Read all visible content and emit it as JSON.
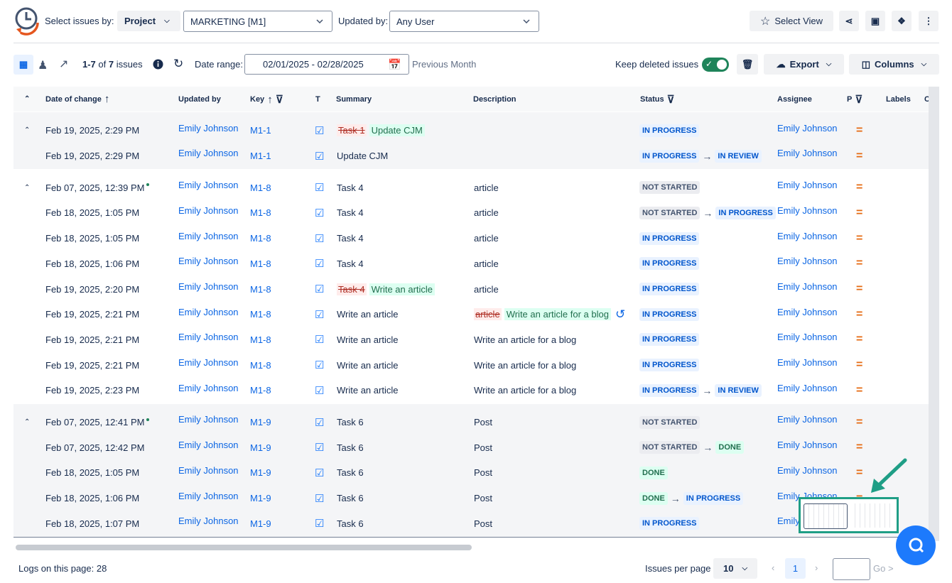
{
  "toolbar": {
    "select_by_label": "Select issues by:",
    "select_by_value": "Project",
    "project": "MARKETING [M1]",
    "updated_by_label": "Updated by:",
    "updated_by_value": "Any User",
    "select_view": "Select View"
  },
  "filters": {
    "count_range": "1-7",
    "count_of": "of",
    "count_total": "7",
    "count_unit": "issues",
    "date_range_label": "Date range:",
    "date_range": "02/01/2025 - 02/28/2025",
    "preset": "Previous Month",
    "keep_deleted": "Keep deleted issues",
    "export": "Export",
    "columns": "Columns"
  },
  "table": {
    "headers": [
      "Date of change",
      "Updated by",
      "Key",
      "T",
      "Summary",
      "Description",
      "Status",
      "Assignee",
      "P",
      "Labels",
      "C"
    ],
    "groups": [
      [
        {
          "date": "Feb 19, 2025, 2:29 PM",
          "user": "Emily Johnson",
          "key": "M1-1",
          "summary_old": "Task 1",
          "summary": "Update CJM",
          "status": "IN PROGRESS",
          "assignee": "Emily Johnson"
        },
        {
          "date": "Feb 19, 2025, 2:29 PM",
          "user": "Emily Johnson",
          "key": "M1-1",
          "summary": "Update CJM",
          "status": "IN PROGRESS",
          "status_to": "IN REVIEW",
          "assignee": "Emily Johnson"
        }
      ],
      [
        {
          "date": "Feb 07, 2025, 12:39 PM",
          "user": "Emily Johnson",
          "key": "M1-8",
          "summary": "Task 4",
          "description": "article",
          "status": "NOT STARTED",
          "assignee": "Emily Johnson"
        },
        {
          "date": "Feb 18, 2025, 1:05 PM",
          "user": "Emily Johnson",
          "key": "M1-8",
          "summary": "Task 4",
          "description": "article",
          "status": "NOT STARTED",
          "status_to": "IN PROGRESS",
          "assignee": "Emily Johnson"
        },
        {
          "date": "Feb 18, 2025, 1:05 PM",
          "user": "Emily Johnson",
          "key": "M1-8",
          "summary": "Task 4",
          "description": "article",
          "status": "IN PROGRESS",
          "assignee": "Emily Johnson"
        },
        {
          "date": "Feb 18, 2025, 1:06 PM",
          "user": "Emily Johnson",
          "key": "M1-8",
          "summary": "Task 4",
          "description": "article",
          "status": "IN PROGRESS",
          "assignee": "Emily Johnson"
        },
        {
          "date": "Feb 19, 2025, 2:20 PM",
          "user": "Emily Johnson",
          "key": "M1-8",
          "summary_old": "Task 4",
          "summary": "Write an article",
          "description": "article",
          "status": "IN PROGRESS",
          "assignee": "Emily Johnson"
        },
        {
          "date": "Feb 19, 2025, 2:21 PM",
          "user": "Emily Johnson",
          "key": "M1-8",
          "summary": "Write an article",
          "description_old": "article",
          "description": "Write an article for a blog",
          "status": "IN PROGRESS",
          "assignee": "Emily Johnson"
        },
        {
          "date": "Feb 19, 2025, 2:21 PM",
          "user": "Emily Johnson",
          "key": "M1-8",
          "summary": "Write an article",
          "description": "Write an article for a blog",
          "status": "IN PROGRESS",
          "assignee": "Emily Johnson"
        },
        {
          "date": "Feb 19, 2025, 2:21 PM",
          "user": "Emily Johnson",
          "key": "M1-8",
          "summary": "Write an article",
          "description": "Write an article for a blog",
          "status": "IN PROGRESS",
          "assignee": "Emily Johnson"
        },
        {
          "date": "Feb 19, 2025, 2:23 PM",
          "user": "Emily Johnson",
          "key": "M1-8",
          "summary": "Write an article",
          "description": "Write an article for a blog",
          "status": "IN PROGRESS",
          "status_to": "IN REVIEW",
          "assignee": "Emily Johnson"
        }
      ],
      [
        {
          "date": "Feb 07, 2025, 12:41 PM",
          "user": "Emily Johnson",
          "key": "M1-9",
          "summary": "Task 6",
          "description": "Post",
          "status": "NOT STARTED",
          "assignee": "Emily Johnson"
        },
        {
          "date": "Feb 07, 2025, 12:42 PM",
          "user": "Emily Johnson",
          "key": "M1-9",
          "summary": "Task 6",
          "description": "Post",
          "status": "NOT STARTED",
          "status_to": "DONE",
          "assignee": "Emily Johnson"
        },
        {
          "date": "Feb 18, 2025, 1:05 PM",
          "user": "Emily Johnson",
          "key": "M1-9",
          "summary": "Task 6",
          "description": "Post",
          "status": "DONE",
          "assignee": "Emily Johnson"
        },
        {
          "date": "Feb 18, 2025, 1:06 PM",
          "user": "Emily Johnson",
          "key": "M1-9",
          "summary": "Task 6",
          "description": "Post",
          "status": "DONE",
          "status_to": "IN PROGRESS",
          "assignee": "Emily Johnson"
        },
        {
          "date": "Feb 18, 2025, 1:07 PM",
          "user": "Emily Johnson",
          "key": "M1-9",
          "summary": "Task 6",
          "description": "Post",
          "status": "IN PROGRESS",
          "assignee": "Emily Johnson"
        }
      ]
    ]
  },
  "footer": {
    "logs": "Logs on this page: 28",
    "per_page_label": "Issues per page",
    "per_page": "10",
    "page": "1",
    "go": "Go >"
  }
}
